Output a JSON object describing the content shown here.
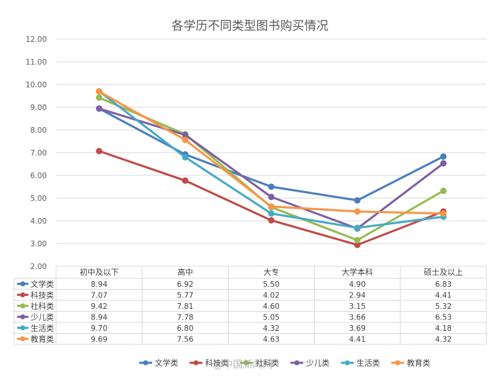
{
  "chart_data": {
    "type": "line",
    "title": "各学历不同类型图书购买情况",
    "categories": [
      "初中及以下",
      "高中",
      "大专",
      "大学本科",
      "硕士及以上"
    ],
    "y_ticks": [
      "12.00",
      "11.00",
      "10.00",
      "9.00",
      "8.00",
      "7.00",
      "6.00",
      "5.00",
      "4.00",
      "3.00",
      "2.00"
    ],
    "ylim": [
      2,
      12
    ],
    "grid": true,
    "legend_position": "bottom",
    "series": [
      {
        "name": "文学类",
        "color": "#4A7EBB",
        "values": [
          8.94,
          6.92,
          5.5,
          4.9,
          6.83
        ],
        "labels": [
          "8.94",
          "6.92",
          "5.50",
          "4.90",
          "6.83"
        ]
      },
      {
        "name": "科技类",
        "color": "#BE4B48",
        "values": [
          7.07,
          5.77,
          4.02,
          2.94,
          4.41
        ],
        "labels": [
          "7.07",
          "5.77",
          "4.02",
          "2.94",
          "4.41"
        ]
      },
      {
        "name": "社科类",
        "color": "#98B954",
        "values": [
          9.42,
          7.81,
          4.6,
          3.15,
          5.32
        ],
        "labels": [
          "9.42",
          "7.81",
          "4.60",
          "3.15",
          "5.32"
        ]
      },
      {
        "name": "少儿类",
        "color": "#7D60A0",
        "values": [
          8.94,
          7.78,
          5.05,
          3.66,
          6.53
        ],
        "labels": [
          "8.94",
          "7.78",
          "5.05",
          "3.66",
          "6.53"
        ]
      },
      {
        "name": "生活类",
        "color": "#46AAC5",
        "values": [
          9.7,
          6.8,
          4.32,
          3.69,
          4.18
        ],
        "labels": [
          "9.70",
          "6.80",
          "4.32",
          "3.69",
          "4.18"
        ]
      },
      {
        "name": "教育类",
        "color": "#F79646",
        "values": [
          9.69,
          7.56,
          4.63,
          4.41,
          4.32
        ],
        "labels": [
          "9.69",
          "7.56",
          "4.63",
          "4.41",
          "4.32"
        ]
      }
    ]
  },
  "watermark": "@中国新闻网"
}
